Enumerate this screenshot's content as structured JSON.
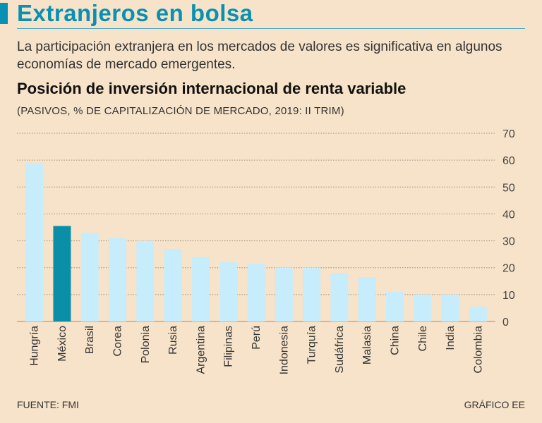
{
  "header": {
    "title": "Extranjeros en bolsa",
    "subtitle": "La participación extranjera en los mercados de valores es significativa en algunos economías de mercado emergentes."
  },
  "colors": {
    "accent": "#0891b2",
    "bar": "#c7ecfb",
    "highlight": "#0b8fa8",
    "background": "#f7e3c9"
  },
  "chart_data": {
    "type": "bar",
    "title": "Posición de inversión internacional de renta variable",
    "subtitle": "(PASIVOS, % DE CAPITALIZACIÓN DE MERCADO, 2019: II TRIM)",
    "categories": [
      "Hungría",
      "México",
      "Brasil",
      "Corea",
      "Polonia",
      "Rusia",
      "Argentina",
      "Filipinas",
      "Perú",
      "Indonesia",
      "Turquía",
      "Sudáfrica",
      "Malasia",
      "China",
      "Chile",
      "India",
      "Colombia"
    ],
    "values": [
      59,
      35.5,
      33,
      31,
      30,
      27,
      24,
      22,
      21.5,
      20,
      20,
      18,
      16.5,
      11,
      10,
      10,
      5.5
    ],
    "highlight": "México",
    "ylim": [
      0,
      70
    ],
    "yticks": [
      0,
      10,
      20,
      30,
      40,
      50,
      60,
      70
    ],
    "grid": true
  },
  "footer": {
    "source": "FUENTE: FMI",
    "credit": "GRÁFICO EE"
  }
}
